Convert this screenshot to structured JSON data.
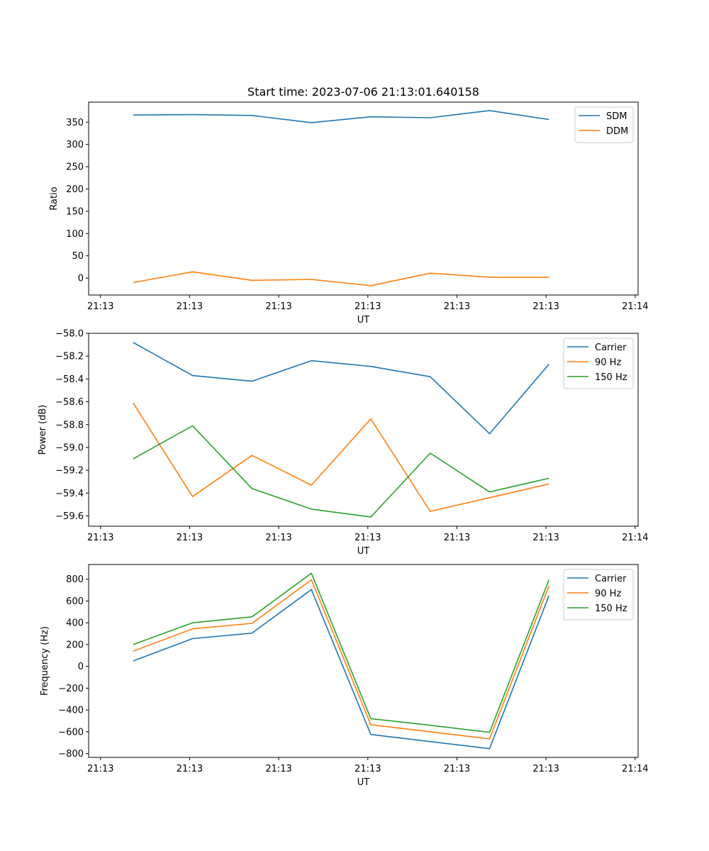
{
  "chart_data": [
    {
      "type": "line",
      "title": "Start time: 2023-07-06 21:13:01.640158",
      "xlabel": "UT",
      "ylabel": "Ratio",
      "x": [
        1,
        2,
        3,
        4,
        5,
        6,
        7,
        8
      ],
      "xlim": [
        0.25,
        9.5
      ],
      "xticks": [
        0.45,
        1.95,
        3.45,
        4.95,
        6.45,
        7.95,
        9.45
      ],
      "xtick_labels": [
        "21:13",
        "21:13",
        "21:13",
        "21:13",
        "21:13",
        "21:13",
        "21:14"
      ],
      "ylim": [
        -38,
        395
      ],
      "yticks": [
        0,
        50,
        100,
        150,
        200,
        250,
        300,
        350
      ],
      "ytick_labels": [
        "0",
        "50",
        "100",
        "150",
        "200",
        "250",
        "300",
        "350"
      ],
      "legend": "upper right",
      "series": [
        {
          "name": "SDM",
          "color": "#1f77b4",
          "values": [
            366,
            367,
            365,
            349,
            362,
            360,
            376,
            356
          ]
        },
        {
          "name": "DDM",
          "color": "#ff7f0e",
          "values": [
            -10,
            14,
            -5,
            -3,
            -17,
            11,
            2,
            2
          ]
        }
      ]
    },
    {
      "type": "line",
      "title": "",
      "xlabel": "UT",
      "ylabel": "Power (dB)",
      "x": [
        1,
        2,
        3,
        4,
        5,
        6,
        7,
        8
      ],
      "xlim": [
        0.25,
        9.5
      ],
      "xticks": [
        0.45,
        1.95,
        3.45,
        4.95,
        6.45,
        7.95,
        9.45
      ],
      "xtick_labels": [
        "21:13",
        "21:13",
        "21:13",
        "21:13",
        "21:13",
        "21:13",
        "21:14"
      ],
      "ylim": [
        -59.69,
        -58.0
      ],
      "yticks": [
        -59.6,
        -59.4,
        -59.2,
        -59.0,
        -58.8,
        -58.6,
        -58.4,
        -58.2,
        -58.0
      ],
      "ytick_labels": [
        "−59.6",
        "−59.4",
        "−59.2",
        "−59.0",
        "−58.8",
        "−58.6",
        "−58.4",
        "−58.2",
        "−58.0"
      ],
      "legend": "upper right",
      "series": [
        {
          "name": "Carrier",
          "color": "#1f77b4",
          "values": [
            -58.08,
            -58.37,
            -58.42,
            -58.24,
            -58.29,
            -58.38,
            -58.88,
            -58.27
          ]
        },
        {
          "name": "90 Hz",
          "color": "#ff7f0e",
          "values": [
            -58.61,
            -59.43,
            -59.07,
            -59.33,
            -58.75,
            -59.56,
            -59.44,
            -59.32
          ]
        },
        {
          "name": "150 Hz",
          "color": "#2ca02c",
          "values": [
            -59.1,
            -58.81,
            -59.36,
            -59.54,
            -59.61,
            -59.05,
            -59.39,
            -59.27
          ]
        }
      ]
    },
    {
      "type": "line",
      "title": "",
      "xlabel": "UT",
      "ylabel": "Frequency (Hz)",
      "x": [
        1,
        2,
        3,
        4,
        5,
        6,
        7,
        8
      ],
      "xlim": [
        0.25,
        9.5
      ],
      "xticks": [
        0.45,
        1.95,
        3.45,
        4.95,
        6.45,
        7.95,
        9.45
      ],
      "xtick_labels": [
        "21:13",
        "21:13",
        "21:13",
        "21:13",
        "21:13",
        "21:13",
        "21:14"
      ],
      "ylim": [
        -835,
        935
      ],
      "yticks": [
        -800,
        -600,
        -400,
        -200,
        0,
        200,
        400,
        600,
        800
      ],
      "ytick_labels": [
        "−800",
        "−600",
        "−400",
        "−200",
        "0",
        "200",
        "400",
        "600",
        "800"
      ],
      "legend": "upper right",
      "series": [
        {
          "name": "Carrier",
          "color": "#1f77b4",
          "values": [
            50,
            255,
            305,
            705,
            -625,
            -690,
            -755,
            650
          ]
        },
        {
          "name": "90 Hz",
          "color": "#ff7f0e",
          "values": [
            140,
            345,
            395,
            795,
            -535,
            -600,
            -665,
            740
          ]
        },
        {
          "name": "150 Hz",
          "color": "#2ca02c",
          "values": [
            200,
            400,
            455,
            855,
            -480,
            -540,
            -605,
            795
          ]
        }
      ]
    }
  ]
}
